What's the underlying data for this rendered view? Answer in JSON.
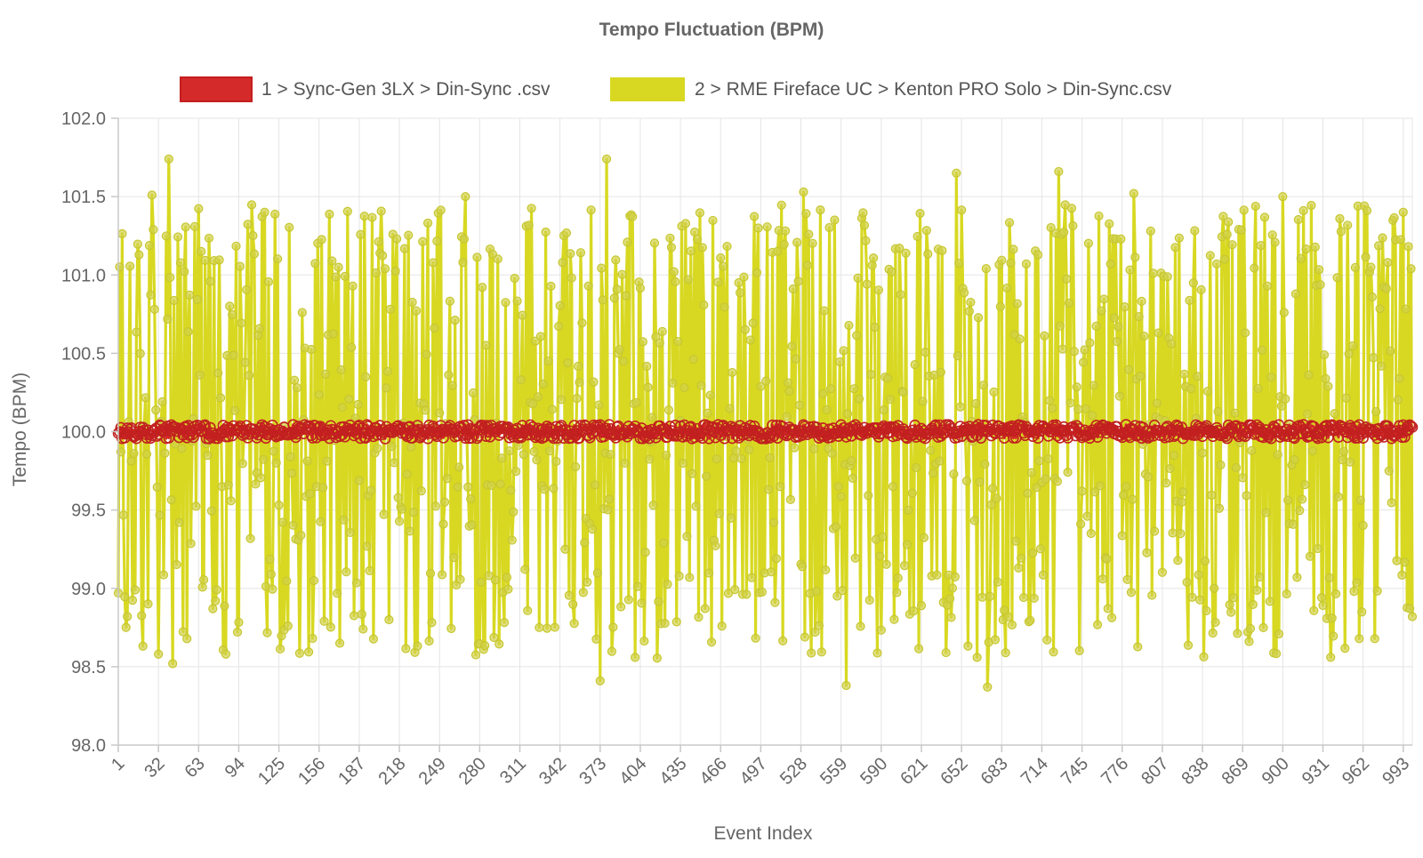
{
  "chart_data": {
    "type": "line",
    "title": "Tempo Fluctuation (BPM)",
    "xlabel": "Event Index",
    "ylabel": "Tempo (BPM)",
    "ylim": [
      98.0,
      102.0
    ],
    "xlim": [
      1,
      1000
    ],
    "y_ticks": [
      "98.0",
      "98.5",
      "99.0",
      "99.5",
      "100.0",
      "100.5",
      "101.0",
      "101.5",
      "102.0"
    ],
    "x_ticks": [
      "1",
      "32",
      "63",
      "94",
      "125",
      "156",
      "187",
      "218",
      "249",
      "280",
      "311",
      "342",
      "373",
      "404",
      "435",
      "466",
      "497",
      "528",
      "559",
      "590",
      "621",
      "652",
      "683",
      "714",
      "745",
      "776",
      "807",
      "838",
      "869",
      "900",
      "931",
      "962",
      "993"
    ],
    "legend_position": "top-center",
    "grid": true,
    "series": [
      {
        "name": "1 > Sync-Gen 3LX > Din-Sync .csv",
        "color": "#d42a2a",
        "mean": 100.0,
        "range": [
          99.95,
          100.06
        ],
        "point_count": 1000
      },
      {
        "name": "2 > RME Fireface UC > Kenton PRO Solo > Din-Sync.csv",
        "color": "#d8d822",
        "mean": 100.0,
        "range": [
          98.38,
          101.74
        ],
        "point_count": 1000,
        "peaks": [
          [
            1,
            98.97
          ],
          [
            27,
            101.51
          ],
          [
            32,
            98.58
          ],
          [
            40,
            101.74
          ],
          [
            43,
            98.52
          ],
          [
            84,
            98.58
          ],
          [
            114,
            101.4
          ],
          [
            269,
            101.5
          ],
          [
            373,
            98.41
          ],
          [
            378,
            101.74
          ],
          [
            530,
            101.53
          ],
          [
            563,
            98.38
          ],
          [
            648,
            101.65
          ],
          [
            672,
            98.37
          ],
          [
            727,
            101.66
          ],
          [
            785,
            101.52
          ],
          [
            900,
            101.5
          ],
          [
            937,
            98.56
          ],
          [
            1000,
            98.82
          ]
        ]
      }
    ]
  }
}
